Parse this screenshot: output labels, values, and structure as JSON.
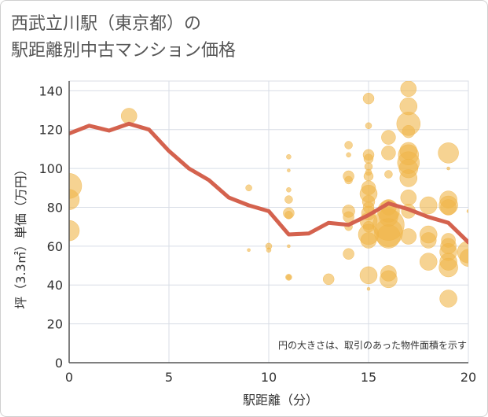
{
  "title_line1": "西武立川駅（東京都）の",
  "title_line2": "駅距離別中古マンション価格",
  "colors": {
    "bubble": "#f0b54a",
    "line": "#d4624e",
    "grid": "#d8dde6",
    "plot_bg": "#ffffff"
  },
  "chart_data": {
    "type": "scatter",
    "xlabel": "駅距離（分）",
    "ylabel": "坪（3.3㎡）単価（万円）",
    "xlim": [
      0,
      20
    ],
    "ylim": [
      0,
      145
    ],
    "xticks": [
      0,
      5,
      10,
      15,
      20
    ],
    "yticks": [
      0,
      20,
      40,
      60,
      80,
      100,
      120,
      140
    ],
    "note": "円の大きさは、取引のあった物件面積を示す",
    "legend": "none",
    "grid": true,
    "bubbles": [
      {
        "x": 0,
        "y": 91,
        "r": 16
      },
      {
        "x": 0,
        "y": 84,
        "r": 13
      },
      {
        "x": 0,
        "y": 68,
        "r": 13
      },
      {
        "x": 3,
        "y": 127,
        "r": 10
      },
      {
        "x": 9,
        "y": 90,
        "r": 4
      },
      {
        "x": 9,
        "y": 58,
        "r": 2
      },
      {
        "x": 10,
        "y": 60,
        "r": 4
      },
      {
        "x": 10,
        "y": 58,
        "r": 3
      },
      {
        "x": 11,
        "y": 106,
        "r": 3
      },
      {
        "x": 11,
        "y": 99,
        "r": 2
      },
      {
        "x": 11,
        "y": 89,
        "r": 3
      },
      {
        "x": 11,
        "y": 84,
        "r": 5
      },
      {
        "x": 11,
        "y": 77,
        "r": 7
      },
      {
        "x": 11,
        "y": 76,
        "r": 5
      },
      {
        "x": 11,
        "y": 60,
        "r": 2
      },
      {
        "x": 11,
        "y": 44,
        "r": 4
      },
      {
        "x": 11,
        "y": 44,
        "r": 3
      },
      {
        "x": 13,
        "y": 43,
        "r": 7
      },
      {
        "x": 14,
        "y": 112,
        "r": 5
      },
      {
        "x": 14,
        "y": 107,
        "r": 3
      },
      {
        "x": 14,
        "y": 96,
        "r": 7
      },
      {
        "x": 14,
        "y": 94,
        "r": 5
      },
      {
        "x": 14,
        "y": 78,
        "r": 8
      },
      {
        "x": 14,
        "y": 75,
        "r": 7
      },
      {
        "x": 14,
        "y": 70,
        "r": 5
      },
      {
        "x": 14,
        "y": 56,
        "r": 7
      },
      {
        "x": 15,
        "y": 136,
        "r": 7
      },
      {
        "x": 15,
        "y": 122,
        "r": 4
      },
      {
        "x": 15,
        "y": 107,
        "r": 7
      },
      {
        "x": 15,
        "y": 105,
        "r": 6
      },
      {
        "x": 15,
        "y": 101,
        "r": 5
      },
      {
        "x": 15,
        "y": 98,
        "r": 4
      },
      {
        "x": 15,
        "y": 96,
        "r": 6
      },
      {
        "x": 15,
        "y": 90,
        "r": 9
      },
      {
        "x": 15,
        "y": 87,
        "r": 11
      },
      {
        "x": 15,
        "y": 83,
        "r": 8
      },
      {
        "x": 15,
        "y": 80,
        "r": 7
      },
      {
        "x": 15,
        "y": 77,
        "r": 9
      },
      {
        "x": 15,
        "y": 73,
        "r": 11
      },
      {
        "x": 15,
        "y": 70,
        "r": 7
      },
      {
        "x": 15,
        "y": 66,
        "r": 13
      },
      {
        "x": 15,
        "y": 63,
        "r": 10
      },
      {
        "x": 15,
        "y": 45,
        "r": 11
      },
      {
        "x": 15,
        "y": 38,
        "r": 2
      },
      {
        "x": 16,
        "y": 116,
        "r": 9
      },
      {
        "x": 16,
        "y": 108,
        "r": 9
      },
      {
        "x": 16,
        "y": 97,
        "r": 5
      },
      {
        "x": 16,
        "y": 80,
        "r": 10
      },
      {
        "x": 16,
        "y": 78,
        "r": 14
      },
      {
        "x": 16,
        "y": 75,
        "r": 12
      },
      {
        "x": 16,
        "y": 71,
        "r": 20
      },
      {
        "x": 16,
        "y": 67,
        "r": 18
      },
      {
        "x": 16,
        "y": 65,
        "r": 15
      },
      {
        "x": 16,
        "y": 46,
        "r": 10
      },
      {
        "x": 16,
        "y": 43,
        "r": 11
      },
      {
        "x": 17,
        "y": 141,
        "r": 10
      },
      {
        "x": 17,
        "y": 132,
        "r": 11
      },
      {
        "x": 17,
        "y": 123,
        "r": 15
      },
      {
        "x": 17,
        "y": 119,
        "r": 8
      },
      {
        "x": 17,
        "y": 109,
        "r": 11
      },
      {
        "x": 17,
        "y": 107,
        "r": 13
      },
      {
        "x": 17,
        "y": 103,
        "r": 14
      },
      {
        "x": 17,
        "y": 100,
        "r": 12
      },
      {
        "x": 17,
        "y": 95,
        "r": 11
      },
      {
        "x": 17,
        "y": 85,
        "r": 10
      },
      {
        "x": 17,
        "y": 78,
        "r": 9
      },
      {
        "x": 17,
        "y": 65,
        "r": 10
      },
      {
        "x": 18,
        "y": 81,
        "r": 11
      },
      {
        "x": 18,
        "y": 66,
        "r": 11
      },
      {
        "x": 18,
        "y": 63,
        "r": 10
      },
      {
        "x": 18,
        "y": 52,
        "r": 11
      },
      {
        "x": 19,
        "y": 108,
        "r": 13
      },
      {
        "x": 19,
        "y": 100,
        "r": 2
      },
      {
        "x": 19,
        "y": 84,
        "r": 11
      },
      {
        "x": 19,
        "y": 81,
        "r": 12
      },
      {
        "x": 19,
        "y": 80,
        "r": 10
      },
      {
        "x": 19,
        "y": 63,
        "r": 9
      },
      {
        "x": 19,
        "y": 60,
        "r": 10
      },
      {
        "x": 19,
        "y": 57,
        "r": 11
      },
      {
        "x": 19,
        "y": 52,
        "r": 11
      },
      {
        "x": 19,
        "y": 49,
        "r": 12
      },
      {
        "x": 19,
        "y": 33,
        "r": 11
      },
      {
        "x": 20,
        "y": 57,
        "r": 14
      },
      {
        "x": 20,
        "y": 54,
        "r": 11
      },
      {
        "x": 20,
        "y": 78,
        "r": 2
      }
    ],
    "series": [
      {
        "x": [
          0,
          1,
          2,
          3,
          4,
          5,
          6,
          7,
          8,
          9,
          10,
          11,
          12,
          13,
          14,
          15,
          16,
          17,
          18,
          19,
          20
        ],
        "values": [
          118,
          122,
          119.5,
          123,
          120,
          109,
          100,
          94,
          85,
          81,
          78,
          66,
          66.5,
          72,
          71,
          76,
          82,
          79,
          75,
          72,
          62
        ]
      }
    ]
  }
}
